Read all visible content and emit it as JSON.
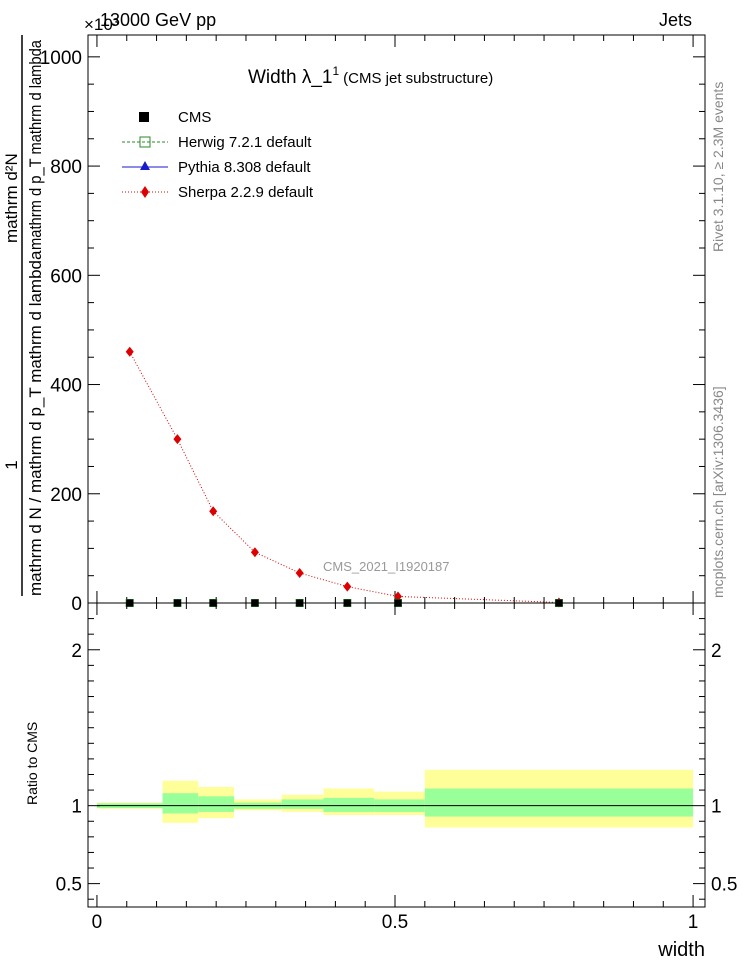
{
  "header": {
    "energy_label": "13000 GeV pp",
    "exponent_label": "×10³",
    "process_label": "Jets"
  },
  "side_labels": {
    "rivet": "Rivet 3.1.10, ≥ 2.3M events",
    "mcplots": "mcplots.cern.ch [arXiv:1306.3436]"
  },
  "chart_data": [
    {
      "type": "line",
      "title": "Width λ_1",
      "title_superscript": "1",
      "subtitle": "(CMS jet substructure)",
      "analysis_label": "CMS_2021_I1920187",
      "ylabel_numerator": "1",
      "ylabel_denominator": "mathrm d N / mathrm d p_T mathrm d lambda",
      "ylabel_top": "mathrm d²N",
      "ylabel_bottom": "mathrm d p_T mathrm d lambda",
      "xlim": [
        0,
        1
      ],
      "ylim": [
        0,
        1040
      ],
      "y_ticks": [
        0,
        200,
        400,
        600,
        800,
        1000
      ],
      "y_tick_labels": [
        "0",
        "200",
        "400",
        "600",
        "800",
        "1000"
      ],
      "legend": [
        {
          "name": "CMS",
          "color": "#000000",
          "marker": "square-filled"
        },
        {
          "name": "Herwig 7.2.1 default",
          "color": "#2a8a2a",
          "marker": "square-open"
        },
        {
          "name": "Pythia 8.308 default",
          "color": "#1a1acc",
          "marker": "triangle"
        },
        {
          "name": "Sherpa 2.2.9 default",
          "color": "#dd0000",
          "marker": "diamond"
        }
      ],
      "series": [
        {
          "name": "CMS",
          "x": [
            0.055,
            0.135,
            0.195,
            0.265,
            0.34,
            0.42,
            0.505,
            0.775
          ],
          "y": [
            0,
            0,
            0,
            0,
            0,
            0,
            0,
            0
          ]
        },
        {
          "name": "Sherpa 2.2.9 default",
          "x": [
            0.055,
            0.135,
            0.195,
            0.265,
            0.34,
            0.42,
            0.505,
            0.775
          ],
          "y": [
            460,
            300,
            168,
            93,
            55,
            30,
            12,
            1
          ]
        }
      ]
    },
    {
      "type": "area",
      "ylabel": "Ratio to CMS",
      "xlabel": "width",
      "xlim": [
        0,
        1
      ],
      "ylim": [
        0.35,
        2.3
      ],
      "x_ticks": [
        0,
        0.5,
        1
      ],
      "x_tick_labels": [
        "0",
        "0.5",
        "1"
      ],
      "y_ticks": [
        0.5,
        1,
        2
      ],
      "y_tick_labels": [
        "0.5",
        "1",
        "2"
      ],
      "band_colors": {
        "stat": "#99ff99",
        "total": "#ffff99"
      },
      "bins": [
        {
          "x0": 0.0,
          "x1": 0.11,
          "stat": [
            0.985,
            1.015
          ],
          "total": [
            0.98,
            1.02
          ]
        },
        {
          "x0": 0.11,
          "x1": 0.17,
          "stat": [
            0.95,
            1.08
          ],
          "total": [
            0.89,
            1.16
          ]
        },
        {
          "x0": 0.17,
          "x1": 0.23,
          "stat": [
            0.96,
            1.06
          ],
          "total": [
            0.92,
            1.12
          ]
        },
        {
          "x0": 0.23,
          "x1": 0.31,
          "stat": [
            0.98,
            1.02
          ],
          "total": [
            0.97,
            1.04
          ]
        },
        {
          "x0": 0.31,
          "x1": 0.38,
          "stat": [
            0.98,
            1.04
          ],
          "total": [
            0.96,
            1.07
          ]
        },
        {
          "x0": 0.38,
          "x1": 0.465,
          "stat": [
            0.96,
            1.05
          ],
          "total": [
            0.94,
            1.11
          ]
        },
        {
          "x0": 0.465,
          "x1": 0.55,
          "stat": [
            0.96,
            1.04
          ],
          "total": [
            0.94,
            1.09
          ]
        },
        {
          "x0": 0.55,
          "x1": 1.0,
          "stat": [
            0.93,
            1.11
          ],
          "total": [
            0.86,
            1.23
          ]
        }
      ]
    }
  ]
}
